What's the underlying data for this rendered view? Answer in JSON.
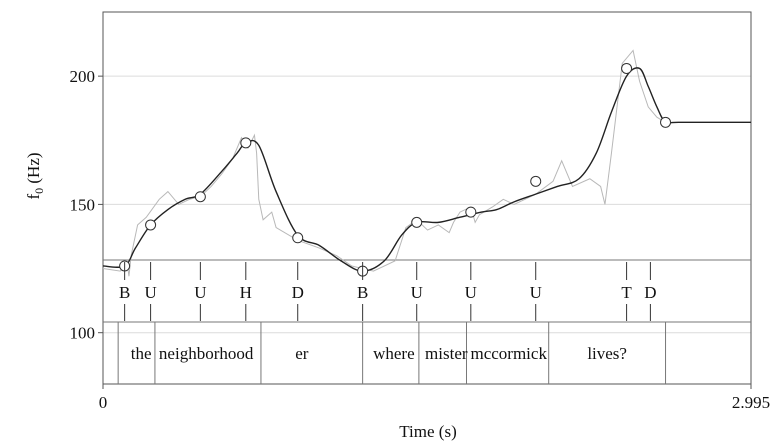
{
  "chart_data": {
    "type": "line",
    "xlabel": "Time (s)",
    "ylabel": "f",
    "ylabel_subscript": "0",
    "ylabel_unit": " (Hz)",
    "xlim": [
      0,
      2.995
    ],
    "ylim": [
      80,
      225
    ],
    "x_ticks": [
      {
        "value": 0,
        "label": "0"
      },
      {
        "value": 2.995,
        "label": "2.995"
      }
    ],
    "y_ticks": [
      {
        "value": 100,
        "label": "100"
      },
      {
        "value": 150,
        "label": "150"
      },
      {
        "value": 200,
        "label": "200"
      }
    ],
    "grid": true,
    "legend": "none",
    "series": [
      {
        "style": "smooth",
        "color": "#222222",
        "x": [
          0,
          0.1,
          0.15,
          0.22,
          0.3,
          0.38,
          0.45,
          0.55,
          0.62,
          0.66,
          0.72,
          0.8,
          0.9,
          1.0,
          1.1,
          1.2,
          1.3,
          1.38,
          1.45,
          1.55,
          1.65,
          1.75,
          1.82,
          1.9,
          2.0,
          2.1,
          2.2,
          2.28,
          2.35,
          2.42,
          2.48,
          2.52,
          2.56,
          2.6,
          2.66,
          2.995
        ],
        "y": [
          126,
          126,
          133,
          142,
          148,
          152,
          154,
          163,
          170,
          174,
          173,
          155,
          138,
          134,
          128,
          124,
          128,
          138,
          143,
          143,
          145,
          147,
          148,
          151,
          154,
          157,
          160,
          170,
          186,
          200,
          203,
          196,
          188,
          182,
          182,
          182
        ]
      },
      {
        "style": "raw",
        "color": "#b8b8b8",
        "x": [
          0,
          0.08,
          0.11,
          0.12,
          0.13,
          0.16,
          0.2,
          0.26,
          0.3,
          0.35,
          0.4,
          0.45,
          0.5,
          0.55,
          0.6,
          0.64,
          0.67,
          0.7,
          0.71,
          0.72,
          0.74,
          0.78,
          0.8,
          0.9,
          1.0,
          1.08,
          1.15,
          1.25,
          1.35,
          1.4,
          1.45,
          1.5,
          1.55,
          1.6,
          1.62,
          1.65,
          1.7,
          1.72,
          1.74,
          1.8,
          1.85,
          1.9,
          2.0,
          2.08,
          2.12,
          2.14,
          2.17,
          2.25,
          2.3,
          2.32,
          2.35,
          2.4,
          2.45,
          2.48,
          2.52,
          2.56,
          2.6,
          2.995
        ],
        "y": [
          125,
          124,
          128,
          122,
          130,
          142,
          145,
          152,
          155,
          150,
          152,
          153,
          157,
          162,
          168,
          176,
          172,
          177,
          170,
          152,
          144,
          147,
          141,
          136,
          133,
          130,
          126,
          124,
          128,
          141,
          144,
          140,
          142,
          139,
          143,
          147,
          149,
          143,
          146,
          149,
          152,
          150,
          154,
          159,
          167,
          163,
          157,
          160,
          157,
          150,
          170,
          205,
          210,
          198,
          188,
          184,
          182,
          182
        ]
      }
    ],
    "markers": [
      {
        "x": 0.1,
        "y": 126
      },
      {
        "x": 0.22,
        "y": 142
      },
      {
        "x": 0.45,
        "y": 153
      },
      {
        "x": 0.66,
        "y": 174
      },
      {
        "x": 0.9,
        "y": 137
      },
      {
        "x": 1.2,
        "y": 124
      },
      {
        "x": 1.45,
        "y": 143
      },
      {
        "x": 1.7,
        "y": 147
      },
      {
        "x": 2.0,
        "y": 159
      },
      {
        "x": 2.42,
        "y": 203
      },
      {
        "x": 2.6,
        "y": 182
      }
    ],
    "tone_labels": [
      {
        "x": 0.1,
        "label": "B"
      },
      {
        "x": 0.22,
        "label": "U"
      },
      {
        "x": 0.45,
        "label": "U"
      },
      {
        "x": 0.66,
        "label": "H"
      },
      {
        "x": 0.9,
        "label": "D"
      },
      {
        "x": 1.2,
        "label": "B"
      },
      {
        "x": 1.45,
        "label": "U"
      },
      {
        "x": 1.7,
        "label": "U"
      },
      {
        "x": 2.0,
        "label": "U"
      },
      {
        "x": 2.42,
        "label": "T"
      },
      {
        "x": 2.53,
        "label": "D"
      }
    ],
    "word_boundaries": [
      0.07,
      0.24,
      0.73,
      1.2,
      1.46,
      1.68,
      2.06,
      2.6
    ],
    "words": [
      {
        "x": 0.11,
        "label": "the"
      },
      {
        "x": 0.24,
        "label": "neighborhood"
      },
      {
        "x": 0.87,
        "label": "er"
      },
      {
        "x": 1.23,
        "label": "where"
      },
      {
        "x": 1.47,
        "label": "mister"
      },
      {
        "x": 1.68,
        "label": "mccormick"
      },
      {
        "x": 2.22,
        "label": "lives?"
      }
    ]
  }
}
